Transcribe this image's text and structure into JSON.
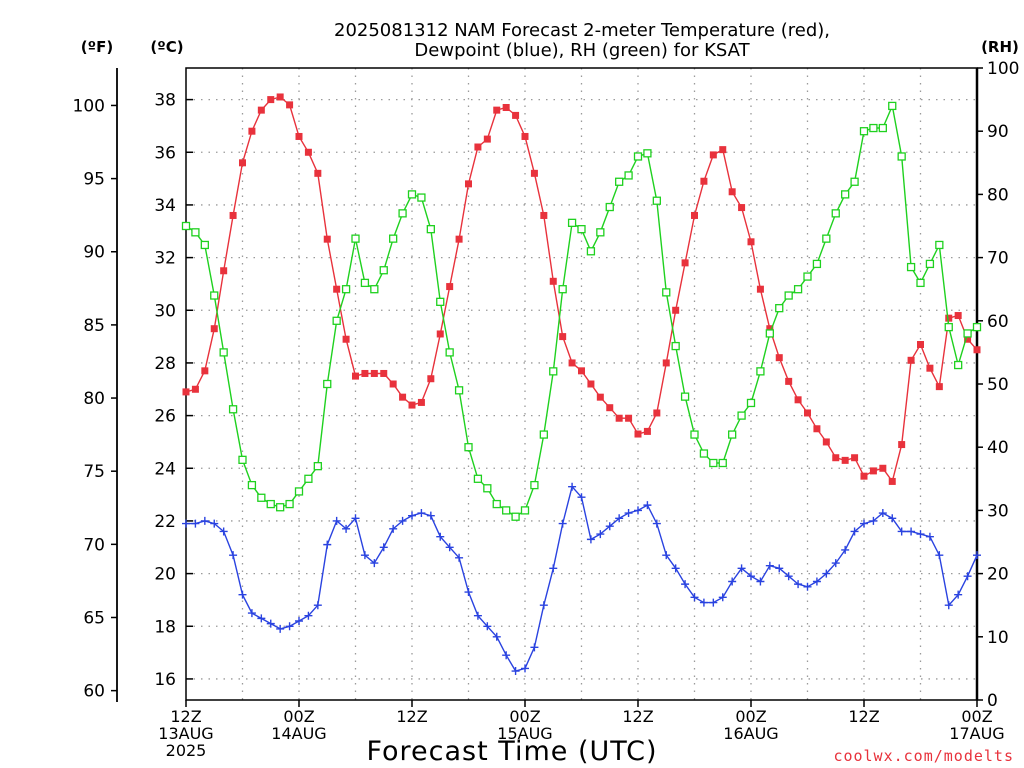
{
  "title_line1": "2025081312 NAM Forecast 2-meter Temperature (red),",
  "title_line2": "Dewpoint (blue), RH (green) for KSAT",
  "unit_f": "(ºF)",
  "unit_c": "(ºC)",
  "unit_rh": "(RH)",
  "xlabel": "Forecast Time (UTC)",
  "credit": "coolwx.com/modelts",
  "colors": {
    "temperature": "#e8323c",
    "dewpoint": "#2a43e0",
    "rh": "#1fd11f"
  },
  "chart_data": {
    "type": "line",
    "title": "2025081312 NAM Forecast 2-meter Temperature (red), Dewpoint (blue), RH (green) for KSAT",
    "xlabel": "Forecast Time (UTC)",
    "x_unit": "forecast hour (0 = 2025-08-13 12Z)",
    "xlim": [
      0,
      84
    ],
    "x_ticks": [
      {
        "hour": 0,
        "lines": [
          "12Z",
          "13AUG",
          "2025"
        ]
      },
      {
        "hour": 12,
        "lines": [
          "00Z",
          "14AUG"
        ]
      },
      {
        "hour": 24,
        "lines": [
          "12Z"
        ]
      },
      {
        "hour": 36,
        "lines": [
          "00Z",
          "15AUG"
        ]
      },
      {
        "hour": 48,
        "lines": [
          "12Z"
        ]
      },
      {
        "hour": 60,
        "lines": [
          "00Z",
          "16AUG"
        ]
      },
      {
        "hour": 72,
        "lines": [
          "12Z"
        ]
      },
      {
        "hour": 84,
        "lines": [
          "00Z",
          "17AUG"
        ]
      }
    ],
    "y_left_c": {
      "label": "(ºC)",
      "range": [
        15.2,
        39.2
      ],
      "ticks": [
        16,
        18,
        20,
        22,
        24,
        26,
        28,
        30,
        32,
        34,
        36,
        38
      ]
    },
    "y_left_f": {
      "label": "(ºF)",
      "ticks": [
        60,
        65,
        70,
        75,
        80,
        85,
        90,
        95,
        100
      ]
    },
    "y_right_rh": {
      "label": "(RH)",
      "range": [
        0,
        100
      ],
      "ticks": [
        0,
        10,
        20,
        30,
        40,
        50,
        60,
        70,
        80,
        90,
        100
      ]
    },
    "grid": true,
    "series": [
      {
        "name": "Temperature",
        "axis": "C",
        "marker": "filled-square",
        "color": "#e8323c",
        "values": [
          26.9,
          27.0,
          27.7,
          29.3,
          31.5,
          33.6,
          35.6,
          36.8,
          37.6,
          38.0,
          38.1,
          37.8,
          36.6,
          36.0,
          35.2,
          32.7,
          30.8,
          28.9,
          27.5,
          27.6,
          27.6,
          27.6,
          27.2,
          26.7,
          26.4,
          26.5,
          27.4,
          29.1,
          30.9,
          32.7,
          34.8,
          36.2,
          36.5,
          37.6,
          37.7,
          37.4,
          36.6,
          35.2,
          33.6,
          31.1,
          29.0,
          28.0,
          27.7,
          27.2,
          26.7,
          26.3,
          25.9,
          25.9,
          25.3,
          25.4,
          26.1,
          28.0,
          30.0,
          31.8,
          33.6,
          34.9,
          35.9,
          36.1,
          34.5,
          33.9,
          32.6,
          30.8,
          29.3,
          28.2,
          27.3,
          26.6,
          26.1,
          25.5,
          25.0,
          24.4,
          24.3,
          24.4,
          23.7,
          23.9,
          24.0,
          23.5,
          24.9,
          28.1,
          28.7,
          27.8,
          27.1,
          29.7,
          29.8,
          28.9,
          28.5
        ]
      },
      {
        "name": "Dewpoint",
        "axis": "C",
        "marker": "plus",
        "color": "#2a43e0",
        "values": [
          21.9,
          21.9,
          22.0,
          21.9,
          21.6,
          20.7,
          19.2,
          18.5,
          18.3,
          18.1,
          17.9,
          18.0,
          18.2,
          18.4,
          18.8,
          21.1,
          22.0,
          21.7,
          22.1,
          20.7,
          20.4,
          21.0,
          21.7,
          22.0,
          22.2,
          22.3,
          22.2,
          21.4,
          21.0,
          20.6,
          19.3,
          18.4,
          18.0,
          17.6,
          16.9,
          16.3,
          16.4,
          17.2,
          18.8,
          20.2,
          21.9,
          23.3,
          22.9,
          21.3,
          21.5,
          21.8,
          22.1,
          22.3,
          22.4,
          22.6,
          21.9,
          20.7,
          20.2,
          19.6,
          19.1,
          18.9,
          18.9,
          19.1,
          19.7,
          20.2,
          19.9,
          19.7,
          20.3,
          20.2,
          19.9,
          19.6,
          19.5,
          19.7,
          20.0,
          20.4,
          20.9,
          21.6,
          21.9,
          22.0,
          22.3,
          22.1,
          21.6,
          21.6,
          21.5,
          21.4,
          20.7,
          18.8,
          19.2,
          19.9,
          20.7
        ]
      },
      {
        "name": "RH",
        "axis": "RH",
        "marker": "open-square",
        "color": "#1fd11f",
        "values": [
          75,
          74,
          72,
          64,
          55,
          46,
          38,
          34,
          32,
          31,
          30.5,
          31,
          33,
          35,
          37,
          50,
          60,
          65,
          73,
          66,
          65,
          68,
          73,
          77,
          80,
          79.5,
          74.5,
          63,
          55,
          49,
          40,
          35,
          33.5,
          31,
          30,
          29,
          30,
          34,
          42,
          52,
          65,
          75.5,
          74.5,
          71,
          74,
          78,
          82,
          83,
          86,
          86.5,
          79,
          64.5,
          56,
          48,
          42,
          39,
          37.5,
          37.5,
          42,
          45,
          47,
          52,
          58,
          62,
          64,
          65,
          67,
          69,
          73,
          77,
          80,
          82,
          90,
          90.5,
          90.5,
          94,
          86,
          68.5,
          66,
          69,
          72,
          59,
          53,
          58,
          59
        ]
      }
    ]
  }
}
